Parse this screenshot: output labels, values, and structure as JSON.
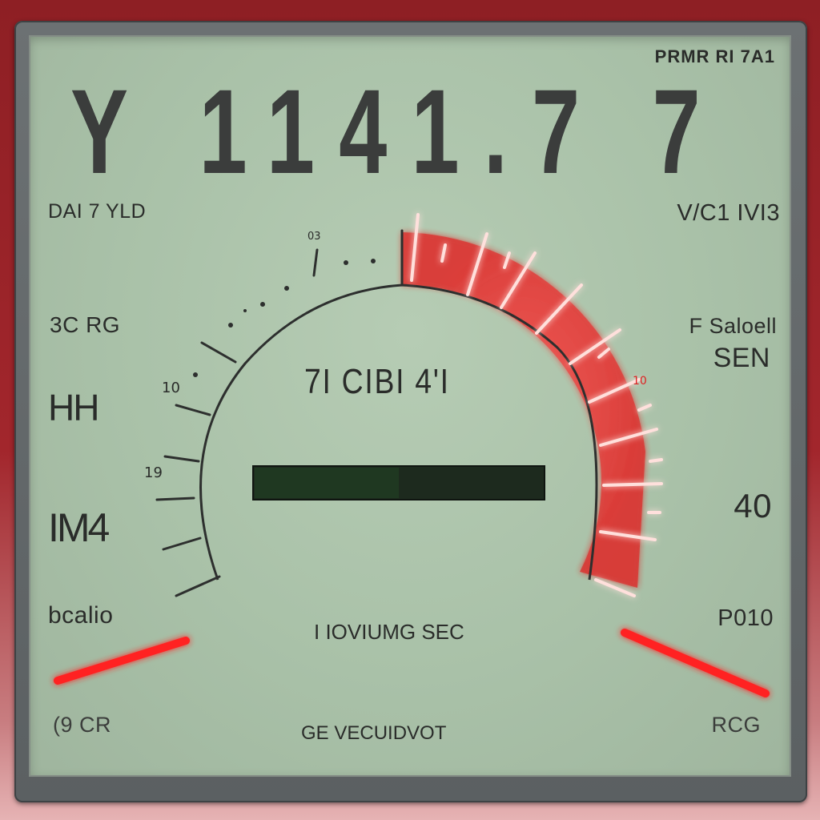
{
  "header": {
    "corner_label": "PRMR RI 7A1",
    "big_readout": "Y 1141.7 7"
  },
  "left_labels": {
    "l1": "DAI 7 YLD",
    "l2": "3C RG",
    "l3": "HH",
    "l4": "IM4",
    "l5": "bcalio",
    "l6": "(9 CR"
  },
  "right_labels": {
    "r1": "V/C1 IVI3",
    "r2a": "F Saloell",
    "r2b": "SEN",
    "r3": "40",
    "r4": "P010",
    "r5": "RCG"
  },
  "gauge": {
    "center_readout": "7I CIBI 4'I",
    "status_line": "I IOVIUMG SEC",
    "bottom_label": "GE VECUIDVOT",
    "tick_labels": {
      "t1": "10",
      "t2": "19",
      "t3": "03",
      "t4": "10"
    },
    "bar_level": 0.5
  },
  "colors": {
    "lcd_bg": "#a9c1a8",
    "segment": "#3b3d3c",
    "redline": "#ff2a2a",
    "bar_glow": "#29d529",
    "bezel": "#9a2328"
  }
}
